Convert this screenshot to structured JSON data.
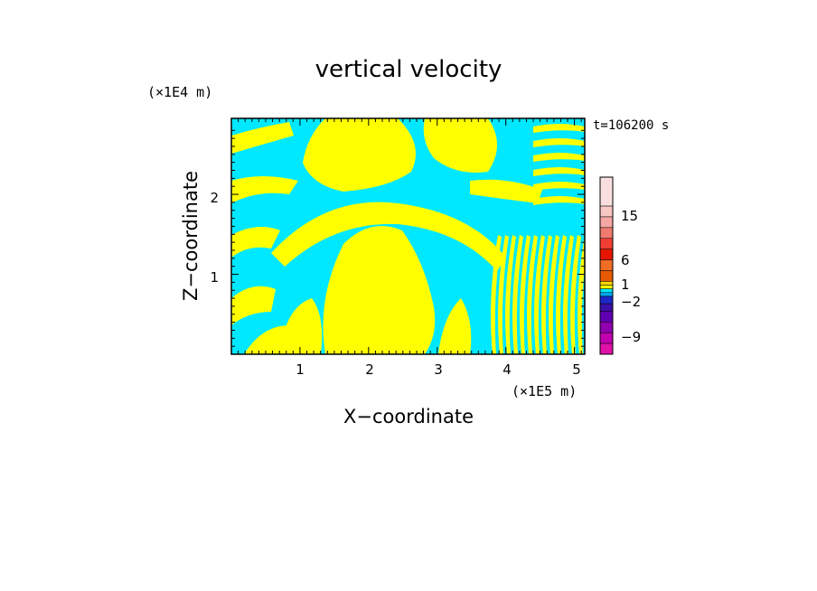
{
  "chart_data": {
    "type": "heatmap",
    "title": "vertical velocity",
    "xlabel": "X−coordinate",
    "ylabel": "Z−coordinate",
    "x_unit_label": "(×1E5 m)",
    "y_unit_label": "(×1E4 m)",
    "time_label": "t=106200 s",
    "xlim": [
      0,
      5.15
    ],
    "ylim": [
      0,
      2.95
    ],
    "x_ticks": [
      "1",
      "2",
      "3",
      "4",
      "5"
    ],
    "y_ticks": [
      "1",
      "2"
    ],
    "colorbar": {
      "tick_labels": [
        "15",
        "6",
        "1",
        "−2",
        "−9"
      ],
      "levels_top_to_bottom": [
        "#f9e0de",
        "#f7c8c4",
        "#f4a7a4",
        "#f07a70",
        "#f03e34",
        "#e51500",
        "#f06d24",
        "#e85a00",
        "#ffd700",
        "#ffff00",
        "#00e8ff",
        "#00a8f0",
        "#1c28c8",
        "#3a10a8",
        "#6000b0",
        "#9000b0",
        "#c000b0",
        "#e010a8"
      ]
    },
    "dominant_colors": {
      "positive_small": "#ffff00",
      "negative_small": "#00e8ff"
    },
    "grid": false,
    "legend": "colorbar-right"
  }
}
